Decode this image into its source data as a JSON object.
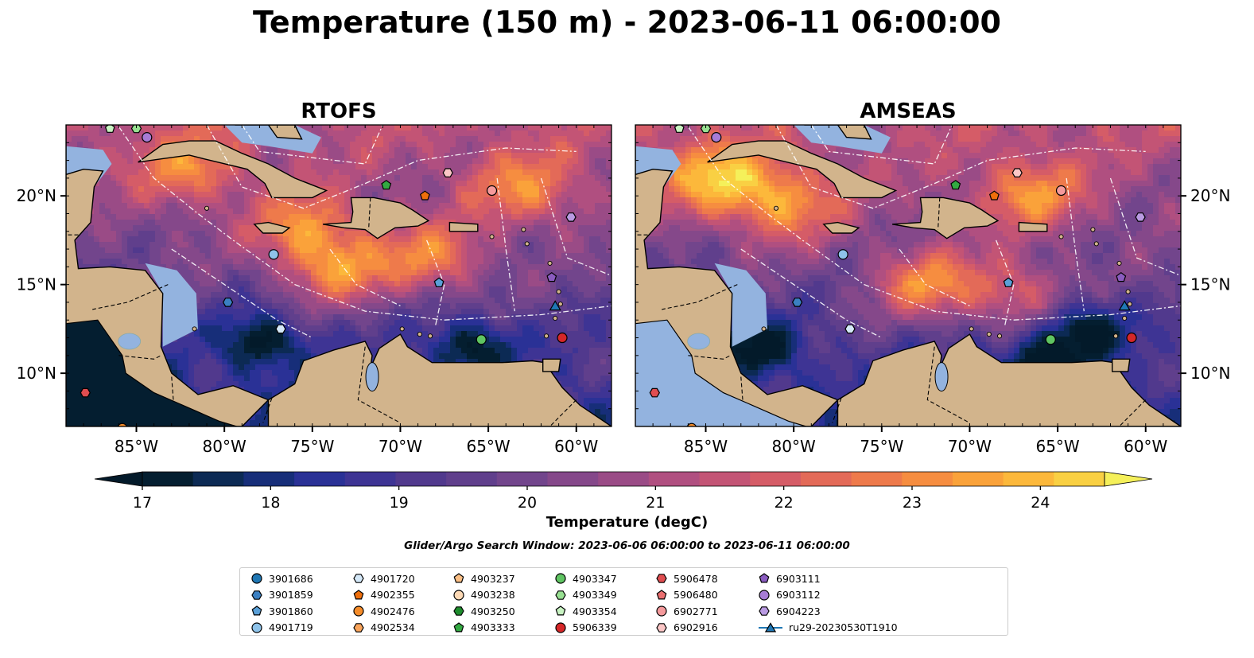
{
  "title": "Temperature (150 m) - 2023-06-11 06:00:00",
  "colorbar": {
    "label": "Temperature (degC)",
    "ticks": [
      "17",
      "18",
      "19",
      "20",
      "21",
      "22",
      "23",
      "24"
    ],
    "range": [
      17,
      24.5
    ],
    "step": 0.5,
    "extend": "both",
    "colors": [
      "#041e30",
      "#0c2a54",
      "#172e79",
      "#2a3196",
      "#3e3494",
      "#51398d",
      "#603f8c",
      "#72458c",
      "#85488a",
      "#9a4b86",
      "#b04f80",
      "#c35475",
      "#d55c67",
      "#e36a58",
      "#ee7a4b",
      "#f68d40",
      "#faa23a",
      "#fcb83b",
      "#f9d043"
    ]
  },
  "search_window": "Glider/Argo Search Window: 2023-06-06 06:00:00 to 2023-06-11 06:00:00",
  "chart_data": [
    {
      "type": "heatmap",
      "title": "RTOFS",
      "lon_range": [
        -89,
        -58
      ],
      "lat_range": [
        7,
        24
      ],
      "x_tick_labels": [
        "85°W",
        "80°W",
        "75°W",
        "70°W",
        "65°W",
        "60°W"
      ],
      "y_tick_labels": [
        "10°N",
        "15°N",
        "20°N"
      ],
      "hot_spots": [
        {
          "lon": -73.5,
          "lat": 15.8,
          "temp": 24.3
        },
        {
          "lon": -68.2,
          "lat": 16.5,
          "temp": 24.0
        },
        {
          "lon": -75.5,
          "lat": 18.2,
          "temp": 23.8
        },
        {
          "lon": -82,
          "lat": 21.5,
          "temp": 23.2
        },
        {
          "lon": -63,
          "lat": 20.3,
          "temp": 23.4
        }
      ],
      "cold_spots": [
        {
          "lon": -78,
          "lat": 11.8,
          "temp": 17.2
        },
        {
          "lon": -66,
          "lat": 11.5,
          "temp": 17.6
        },
        {
          "lon": -85,
          "lat": 8.8,
          "temp": 17.0
        }
      ]
    },
    {
      "type": "heatmap",
      "title": "AMSEAS",
      "lon_range": [
        -89,
        -58
      ],
      "lat_range": [
        7,
        24
      ],
      "x_tick_labels": [
        "85°W",
        "80°W",
        "75°W",
        "70°W",
        "65°W",
        "60°W"
      ],
      "y_tick_labels": [
        "10°N",
        "15°N",
        "20°N"
      ],
      "hot_spots": [
        {
          "lon": -84.5,
          "lat": 21.0,
          "temp": 24.5
        },
        {
          "lon": -80.5,
          "lat": 19.5,
          "temp": 24.2
        },
        {
          "lon": -72.5,
          "lat": 15.0,
          "temp": 24.4
        },
        {
          "lon": -66.5,
          "lat": 20.0,
          "temp": 23.7
        },
        {
          "lon": -67.5,
          "lat": 14.5,
          "temp": 23.4
        }
      ],
      "cold_spots": [
        {
          "lon": -82,
          "lat": 11.5,
          "temp": 17.3
        },
        {
          "lon": -63.5,
          "lat": 12.5,
          "temp": 17.2
        },
        {
          "lon": -66,
          "lat": 10.5,
          "temp": 17.5
        }
      ]
    }
  ],
  "platforms": [
    {
      "id": "3901686",
      "color": "#1f77b4",
      "marker": "circle",
      "lon": null,
      "lat": null
    },
    {
      "id": "3901859",
      "color": "#3b80c2",
      "marker": "hexagon",
      "lon": -79.8,
      "lat": 14.0
    },
    {
      "id": "3901860",
      "color": "#5aa0d8",
      "marker": "pentagon",
      "lon": -67.8,
      "lat": 15.1
    },
    {
      "id": "4901719",
      "color": "#8ec3ea",
      "marker": "circle",
      "lon": -77.2,
      "lat": 16.7
    },
    {
      "id": "4901720",
      "color": "#d4e8f8",
      "marker": "hexagon",
      "lon": -76.8,
      "lat": 12.5
    },
    {
      "id": "4902355",
      "color": "#ef6f0c",
      "marker": "pentagon",
      "lon": -68.6,
      "lat": 20.0
    },
    {
      "id": "4902476",
      "color": "#f58c2a",
      "marker": "circle",
      "lon": -85.8,
      "lat": 6.9
    },
    {
      "id": "4902534",
      "color": "#f9a45b",
      "marker": "hexagon",
      "lon": null,
      "lat": null
    },
    {
      "id": "4903237",
      "color": "#fbbf85",
      "marker": "pentagon",
      "lon": null,
      "lat": null
    },
    {
      "id": "4903238",
      "color": "#fdd9b5",
      "marker": "circle",
      "lon": null,
      "lat": null
    },
    {
      "id": "4903250",
      "color": "#1e8c2d",
      "marker": "hexagon",
      "lon": null,
      "lat": null
    },
    {
      "id": "4903333",
      "color": "#33a942",
      "marker": "pentagon",
      "lon": -70.8,
      "lat": 20.6
    },
    {
      "id": "4903347",
      "color": "#5fc462",
      "marker": "circle",
      "lon": -65.4,
      "lat": 11.9
    },
    {
      "id": "4903349",
      "color": "#98e092",
      "marker": "hexagon",
      "lon": -85.0,
      "lat": 23.8
    },
    {
      "id": "4903354",
      "color": "#c8f3c2",
      "marker": "pentagon",
      "lon": -86.5,
      "lat": 23.8
    },
    {
      "id": "5906339",
      "color": "#d62728",
      "marker": "circle",
      "lon": -60.8,
      "lat": 12.0
    },
    {
      "id": "5906478",
      "color": "#e04d50",
      "marker": "hexagon",
      "lon": -87.9,
      "lat": 8.9
    },
    {
      "id": "5906480",
      "color": "#ea6f70",
      "marker": "pentagon",
      "lon": null,
      "lat": null
    },
    {
      "id": "6902771",
      "color": "#f59a9c",
      "marker": "circle",
      "lon": -64.8,
      "lat": 20.3
    },
    {
      "id": "6902916",
      "color": "#fbc6c6",
      "marker": "hexagon",
      "lon": -67.3,
      "lat": 21.3
    },
    {
      "id": "6903111",
      "color": "#8a5cc0",
      "marker": "pentagon",
      "lon": -61.4,
      "lat": 15.4
    },
    {
      "id": "6903112",
      "color": "#a77cd6",
      "marker": "circle",
      "lon": -84.4,
      "lat": 23.3
    },
    {
      "id": "6904223",
      "color": "#b99ae2",
      "marker": "hexagon",
      "lon": -60.3,
      "lat": 18.8
    },
    {
      "id": "ru29-20230530T1910",
      "color": "#1f77b4",
      "marker": "triangle-line",
      "lon": -61.2,
      "lat": 13.8
    }
  ]
}
